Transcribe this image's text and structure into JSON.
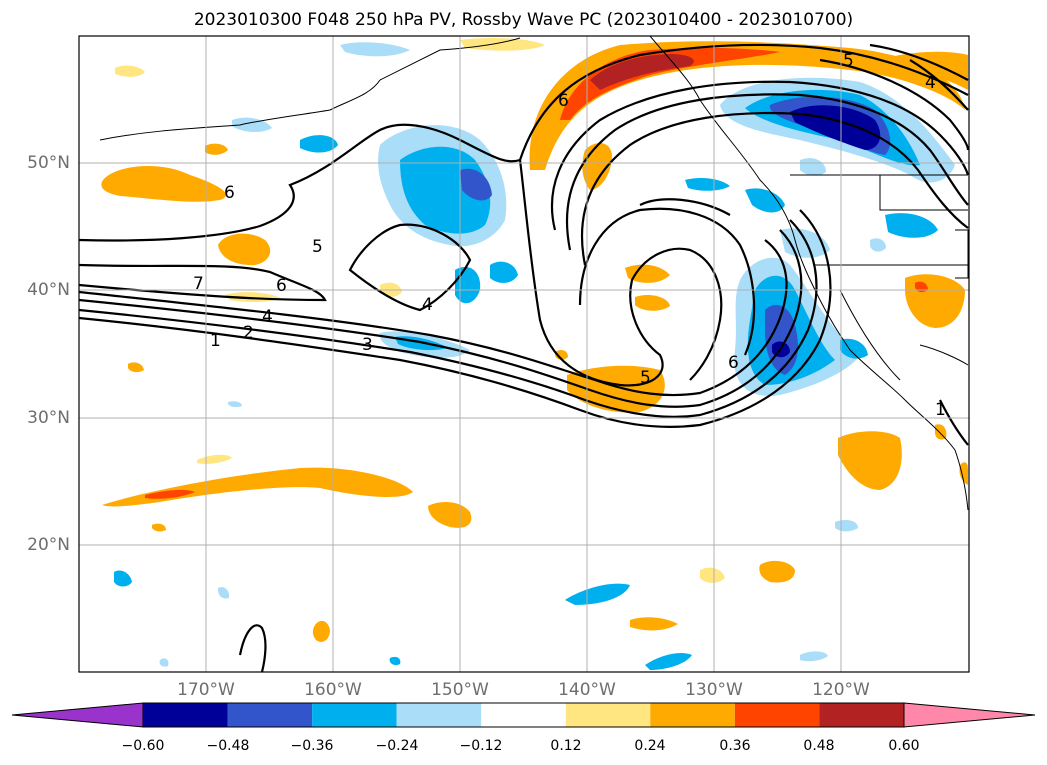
{
  "title": "2023010300 F048 250 hPa PV, Rossby Wave PC (2023010400 - 2023010700)",
  "axes": {
    "lat_labels": [
      "50°N",
      "40°N",
      "30°N",
      "20°N"
    ],
    "lon_labels": [
      "170°W",
      "160°W",
      "150°W",
      "140°W",
      "130°W",
      "120°W"
    ]
  },
  "contour_labels": [
    "1",
    "2",
    "3",
    "4",
    "5",
    "6",
    "7",
    "4",
    "5",
    "6",
    "6",
    "6",
    "5",
    "4",
    "1"
  ],
  "colorbar": {
    "ticks": [
      "−0.60",
      "−0.48",
      "−0.36",
      "−0.24",
      "−0.12",
      "0.12",
      "0.24",
      "0.36",
      "0.48",
      "0.60"
    ],
    "colors": [
      "#9933cc",
      "#000099",
      "#3355cc",
      "#00b0ee",
      "#aaddf7",
      "#ffffff",
      "#ffe680",
      "#ffaa00",
      "#ff4400",
      "#b22222",
      "#ff88aa"
    ]
  }
}
